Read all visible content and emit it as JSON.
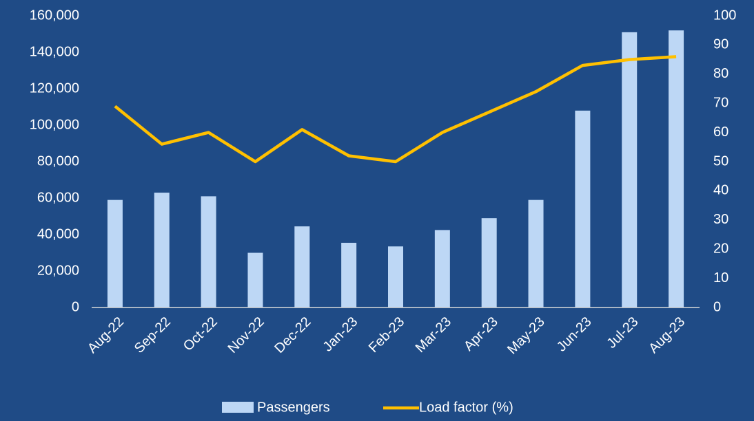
{
  "chart_data": {
    "type": "bar_line",
    "categories": [
      "Aug-22",
      "Sep-22",
      "Oct-22",
      "Nov-22",
      "Dec-22",
      "Jan-23",
      "Feb-23",
      "Mar-23",
      "Apr-23",
      "May-23",
      "Jun-23",
      "Jul-23",
      "Aug-23"
    ],
    "series": [
      {
        "name": "Passengers",
        "type": "bar",
        "color": "#bdd7f5",
        "values": [
          59000,
          63000,
          61000,
          30000,
          44500,
          35500,
          33500,
          42500,
          49000,
          59000,
          108000,
          151000,
          152000
        ]
      },
      {
        "name": "Load factor (%)",
        "type": "line",
        "axis": "y2",
        "color": "#ffc000",
        "values": [
          69,
          56,
          60,
          50,
          61,
          52,
          50,
          60,
          67,
          74,
          83,
          85,
          86
        ]
      }
    ],
    "ylim": [
      0,
      160000
    ],
    "yticks": [
      0,
      {
        "value": 20000,
        "label": "20,000"
      },
      {
        "value": 40000,
        "label": "40,000"
      },
      {
        "value": 60000,
        "label": "60,000"
      },
      {
        "value": 80000,
        "label": "80,000"
      },
      {
        "value": 100000,
        "label": "100,000"
      },
      {
        "value": 120000,
        "label": "120,000"
      },
      {
        "value": 140000,
        "label": "140,000"
      },
      {
        "value": 160000,
        "label": "160,000"
      }
    ],
    "y2lim": [
      0,
      100
    ],
    "y2ticks": [
      0,
      10,
      20,
      30,
      40,
      50,
      60,
      70,
      80,
      90,
      100
    ],
    "legend": "bottom"
  }
}
